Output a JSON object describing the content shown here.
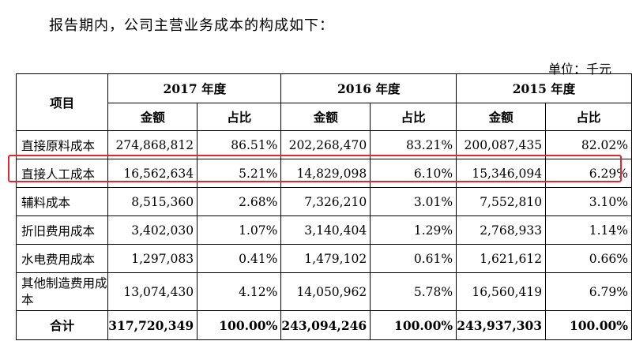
{
  "intro_text": "报告期内，公司主营业务成本的构成如下：",
  "unit_text": "单位：千元",
  "header": {
    "item": "项目",
    "years": [
      "2017 年度",
      "2016 年度",
      "2015 年度"
    ],
    "amount": "金额",
    "ratio": "占比"
  },
  "rows": [
    {
      "label": "直接原料成本",
      "v": [
        "274,868,812",
        "86.51%",
        "202,268,470",
        "83.21%",
        "200,087,435",
        "82.02%"
      ]
    },
    {
      "label": "直接人工成本",
      "v": [
        "16,562,634",
        "5.21%",
        "14,829,098",
        "6.10%",
        "15,346,094",
        "6.29%"
      ]
    },
    {
      "label": "辅料成本",
      "v": [
        "8,515,360",
        "2.68%",
        "7,326,210",
        "3.01%",
        "7,552,810",
        "3.10%"
      ]
    },
    {
      "label": "折旧费用成本",
      "v": [
        "3,402,030",
        "1.07%",
        "3,140,404",
        "1.29%",
        "2,768,933",
        "1.14%"
      ]
    },
    {
      "label": "水电费用成本",
      "v": [
        "1,297,083",
        "0.41%",
        "1,479,102",
        "0.61%",
        "1,621,612",
        "0.66%"
      ]
    },
    {
      "label": "其他制造费用成本",
      "v": [
        "13,074,430",
        "4.12%",
        "14,050,962",
        "5.78%",
        "16,560,419",
        "6.79%"
      ]
    }
  ],
  "total": {
    "label": "合计",
    "v": [
      "317,720,349",
      "100.00%",
      "243,094,246",
      "100.00%",
      "243,937,303",
      "100.00%"
    ]
  },
  "highlight_color": "#e3262f"
}
